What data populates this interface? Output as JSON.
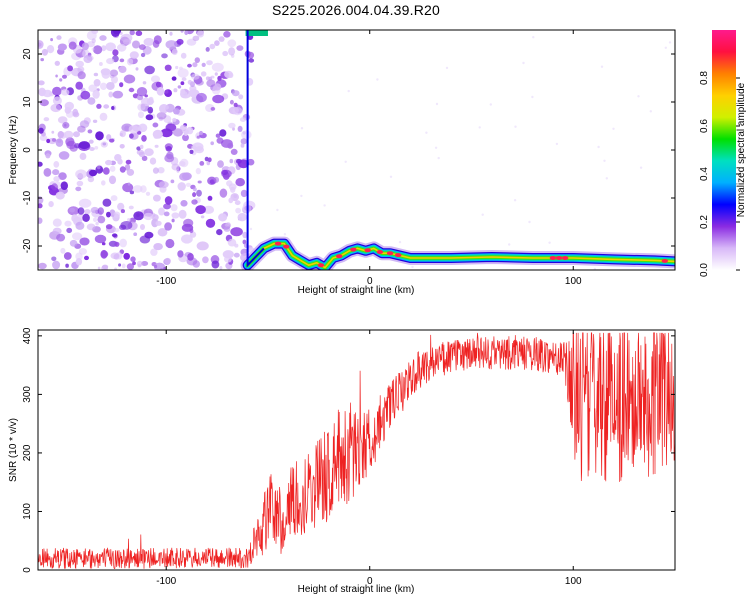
{
  "title": "S225.2026.004.04.39.R20",
  "chart_data": [
    {
      "type": "heatmap",
      "xlabel": "Height of straight line (km)",
      "ylabel": "Frequency (Hz)",
      "xlim": [
        -163,
        150
      ],
      "ylim": [
        -25,
        25
      ],
      "x_ticks": [
        -100,
        0,
        100
      ],
      "y_ticks": [
        -20,
        -10,
        0,
        10,
        20
      ],
      "colorbar": {
        "label": "Normalized spectral amplitude",
        "range": [
          0,
          1
        ],
        "ticks": [
          "0.0",
          "0.2",
          "0.4",
          "0.6",
          "0.8"
        ],
        "colormap": [
          "#ffffff",
          "#d8b8f8",
          "#8a2be2",
          "#0000ff",
          "#00b0ff",
          "#00e0c0",
          "#00e000",
          "#d0f000",
          "#ffd000",
          "#ff8000",
          "#ff1040",
          "#ff1a8c"
        ]
      },
      "signal_trace": {
        "x": [
          -60,
          -52,
          -47,
          -42,
          -38,
          -34,
          -30,
          -26,
          -22,
          -18,
          -14,
          -10,
          -6,
          -2,
          2,
          6,
          10,
          20,
          40,
          60,
          80,
          100,
          120,
          140,
          150
        ],
        "frequency": [
          -24,
          -20.5,
          -19.5,
          -19.5,
          -22,
          -23,
          -24,
          -23.5,
          -24.5,
          -22.5,
          -22,
          -21,
          -20.5,
          -21,
          -20.5,
          -21.5,
          -21.5,
          -22.5,
          -22.5,
          -22.3,
          -22.5,
          -22.5,
          -22.8,
          -23,
          -23.2
        ]
      },
      "noise_region_x": [
        -163,
        -60
      ]
    },
    {
      "type": "line",
      "xlabel": "Height of straight line (km)",
      "ylabel": "SNR (10 * v/v)",
      "xlim": [
        -163,
        150
      ],
      "ylim": [
        0,
        410
      ],
      "x_ticks": [
        -100,
        0,
        100
      ],
      "y_ticks": [
        0,
        100,
        200,
        300,
        400
      ],
      "series": [
        {
          "color": "#ee2222",
          "envelope_x": [
            -163,
            -100,
            -60,
            -52,
            -48,
            -44,
            -40,
            -35,
            -30,
            -25,
            -20,
            -15,
            -10,
            -5,
            0,
            5,
            10,
            15,
            20,
            30,
            40,
            50,
            60,
            70,
            80,
            90,
            96,
            100,
            110,
            120,
            130,
            140,
            150
          ],
          "envelope_mean": [
            20,
            20,
            20,
            80,
            110,
            80,
            110,
            120,
            140,
            150,
            165,
            190,
            200,
            210,
            220,
            250,
            280,
            300,
            330,
            355,
            365,
            368,
            370,
            372,
            370,
            365,
            360,
            300,
            300,
            300,
            300,
            300,
            300
          ],
          "envelope_spread": [
            18,
            18,
            18,
            60,
            60,
            60,
            60,
            70,
            70,
            80,
            80,
            90,
            90,
            70,
            60,
            50,
            40,
            40,
            35,
            30,
            30,
            30,
            30,
            30,
            30,
            30,
            30,
            150,
            150,
            150,
            150,
            140,
            120
          ]
        }
      ]
    }
  ]
}
